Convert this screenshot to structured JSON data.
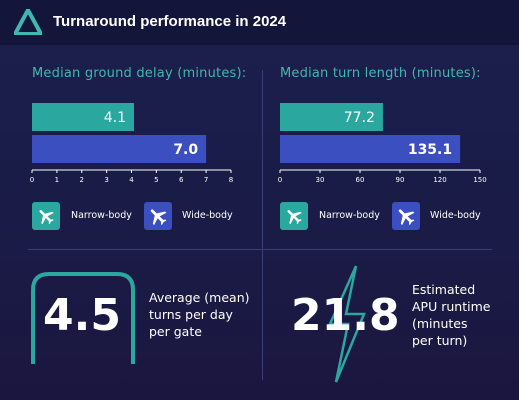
{
  "header": {
    "title": "Turnaround performance in 2024"
  },
  "colors": {
    "narrow": "#2aa79e",
    "wide": "#3b4fc0",
    "accent": "#3fb8b0",
    "background": "#1c1e4d"
  },
  "legend": {
    "narrow_label": "Narrow-body",
    "wide_label": "Wide-body",
    "narrow_icon": "airplane-icon",
    "wide_icon": "airplane-icon"
  },
  "chart_data": [
    {
      "type": "bar",
      "orientation": "horizontal",
      "title": "Median ground delay (minutes):",
      "categories": [
        "Narrow-body",
        "Wide-body"
      ],
      "values": [
        4.1,
        7.0
      ],
      "value_labels": [
        "4.1",
        "7.0"
      ],
      "xlim": [
        0,
        8
      ],
      "xticks": [
        "0",
        "1",
        "2",
        "3",
        "4",
        "5",
        "6",
        "7",
        "8"
      ],
      "tick_values": [
        0,
        1,
        2,
        3,
        4,
        5,
        6,
        7,
        8
      ]
    },
    {
      "type": "bar",
      "orientation": "horizontal",
      "title": "Median turn length (minutes):",
      "categories": [
        "Narrow-body",
        "Wide-body"
      ],
      "values": [
        77.2,
        135.1
      ],
      "value_labels": [
        "77.2",
        "135.1"
      ],
      "xlim": [
        0,
        150
      ],
      "xticks": [
        "0",
        "30",
        "60",
        "90",
        "120",
        "150"
      ],
      "tick_values": [
        0,
        30,
        60,
        90,
        120,
        150
      ]
    }
  ],
  "stats": [
    {
      "value": "4.5",
      "label": "Average (mean)\nturns per day\nper gate"
    },
    {
      "value": "21.8",
      "label": "Estimated\nAPU runtime\n(minutes\nper turn)"
    }
  ]
}
